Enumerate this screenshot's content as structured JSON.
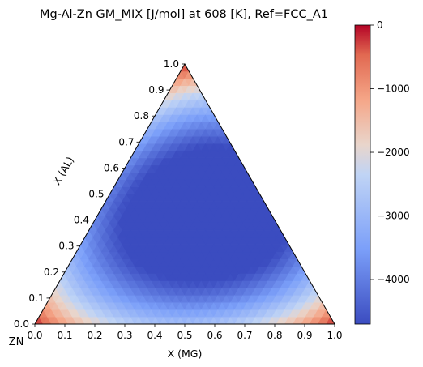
{
  "chart_data": {
    "type": "heatmap",
    "subtype": "ternary",
    "title": "Mg-Al-Zn GM_MIX [J/mol] at 608 [K], Ref=FCC_A1",
    "xlabel": "X (MG)",
    "ylabel": "X (AL)",
    "corner_label": "ZN",
    "x_range": [
      0,
      1
    ],
    "y_range": [
      0,
      1
    ],
    "x_ticks": [
      "0.0",
      "0.1",
      "0.2",
      "0.3",
      "0.4",
      "0.5",
      "0.6",
      "0.7",
      "0.8",
      "0.9",
      "1.0"
    ],
    "y_ticks": [
      "0.0",
      "0.1",
      "0.2",
      "0.3",
      "0.4",
      "0.5",
      "0.6",
      "0.7",
      "0.8",
      "0.9",
      "1.0"
    ],
    "colormap": "coolwarm",
    "colorbar": {
      "min": -4700,
      "max": 0,
      "ticks": [
        0,
        -1000,
        -2000,
        -3000,
        -4000
      ],
      "tick_labels": [
        "0",
        "−1000",
        "−2000",
        "−3000",
        "−4000"
      ]
    },
    "minimum_point": {
      "x_mg": 0.5,
      "x_al": 0.42,
      "value": -4700
    },
    "edge_values": {
      "mg_al_mid": -4400,
      "al_zn_mid": -3100,
      "mg_zn_mid": -1900
    },
    "grid": false
  }
}
